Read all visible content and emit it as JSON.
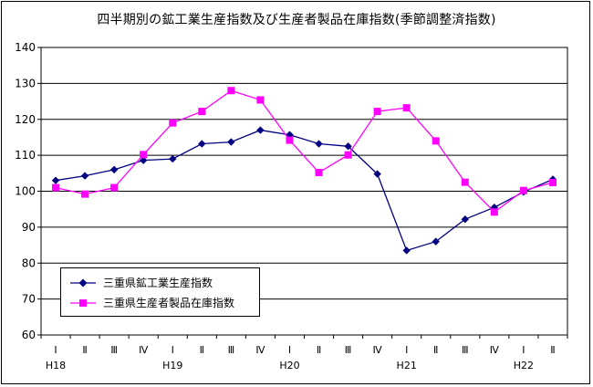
{
  "chart_data": {
    "type": "line",
    "title": "四半期別の鉱工業生産指数及び生産者製品在庫指数(季節調整済指数)",
    "x_labels": [
      "Ⅰ",
      "Ⅱ",
      "Ⅲ",
      "Ⅳ",
      "Ⅰ",
      "Ⅱ",
      "Ⅲ",
      "Ⅳ",
      "Ⅰ",
      "Ⅱ",
      "Ⅲ",
      "Ⅳ",
      "Ⅰ",
      "Ⅱ",
      "Ⅲ",
      "Ⅳ",
      "Ⅰ",
      "Ⅱ"
    ],
    "year_labels": [
      {
        "index": 0,
        "label": "H18"
      },
      {
        "index": 4,
        "label": "H19"
      },
      {
        "index": 8,
        "label": "H20"
      },
      {
        "index": 12,
        "label": "H21"
      },
      {
        "index": 16,
        "label": "H22"
      }
    ],
    "ylim": [
      60,
      140
    ],
    "yticks": [
      60,
      70,
      80,
      90,
      100,
      110,
      120,
      130,
      140
    ],
    "grid": true,
    "legend_position": "lower-left",
    "series": [
      {
        "name": "三重県鉱工業生産指数",
        "color": "#000080",
        "marker": "diamond",
        "values": [
          103,
          104.3,
          106,
          108.6,
          109,
          113.2,
          113.7,
          117,
          115.7,
          113.2,
          112.5,
          104.8,
          83.5,
          86,
          92.2,
          95.5,
          99.8,
          103.3
        ]
      },
      {
        "name": "三重県生産者製品在庫指数",
        "color": "#ff00ff",
        "marker": "square",
        "values": [
          101,
          99.2,
          101,
          110.2,
          119,
          122.2,
          128,
          125.4,
          114.2,
          105.2,
          110.1,
          122.2,
          123.2,
          114,
          102.5,
          94.2,
          100.2,
          102.4
        ]
      }
    ]
  }
}
